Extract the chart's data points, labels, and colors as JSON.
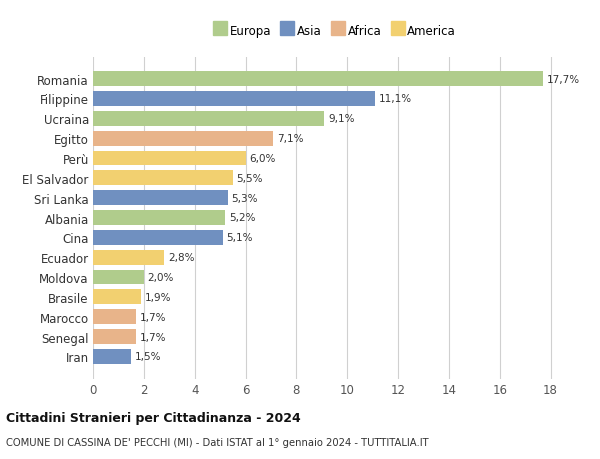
{
  "categories": [
    "Romania",
    "Filippine",
    "Ucraina",
    "Egitto",
    "Perù",
    "El Salvador",
    "Sri Lanka",
    "Albania",
    "Cina",
    "Ecuador",
    "Moldova",
    "Brasile",
    "Marocco",
    "Senegal",
    "Iran"
  ],
  "values": [
    17.7,
    11.1,
    9.1,
    7.1,
    6.0,
    5.5,
    5.3,
    5.2,
    5.1,
    2.8,
    2.0,
    1.9,
    1.7,
    1.7,
    1.5
  ],
  "labels": [
    "17,7%",
    "11,1%",
    "9,1%",
    "7,1%",
    "6,0%",
    "5,5%",
    "5,3%",
    "5,2%",
    "5,1%",
    "2,8%",
    "2,0%",
    "1,9%",
    "1,7%",
    "1,7%",
    "1,5%"
  ],
  "continents": [
    "Europa",
    "Asia",
    "Europa",
    "Africa",
    "America",
    "America",
    "Asia",
    "Europa",
    "Asia",
    "America",
    "Europa",
    "America",
    "Africa",
    "Africa",
    "Asia"
  ],
  "colors": {
    "Europa": "#b0cc8c",
    "Asia": "#7090c0",
    "Africa": "#e8b48a",
    "America": "#f2d070"
  },
  "legend_order": [
    "Europa",
    "Asia",
    "Africa",
    "America"
  ],
  "title": "Cittadini Stranieri per Cittadinanza - 2024",
  "subtitle": "COMUNE DI CASSINA DE' PECCHI (MI) - Dati ISTAT al 1° gennaio 2024 - TUTTITALIA.IT",
  "xlim": [
    0,
    19
  ],
  "xticks": [
    0,
    2,
    4,
    6,
    8,
    10,
    12,
    14,
    16,
    18
  ],
  "background_color": "#ffffff",
  "grid_color": "#d0d0d0",
  "bar_height": 0.75
}
